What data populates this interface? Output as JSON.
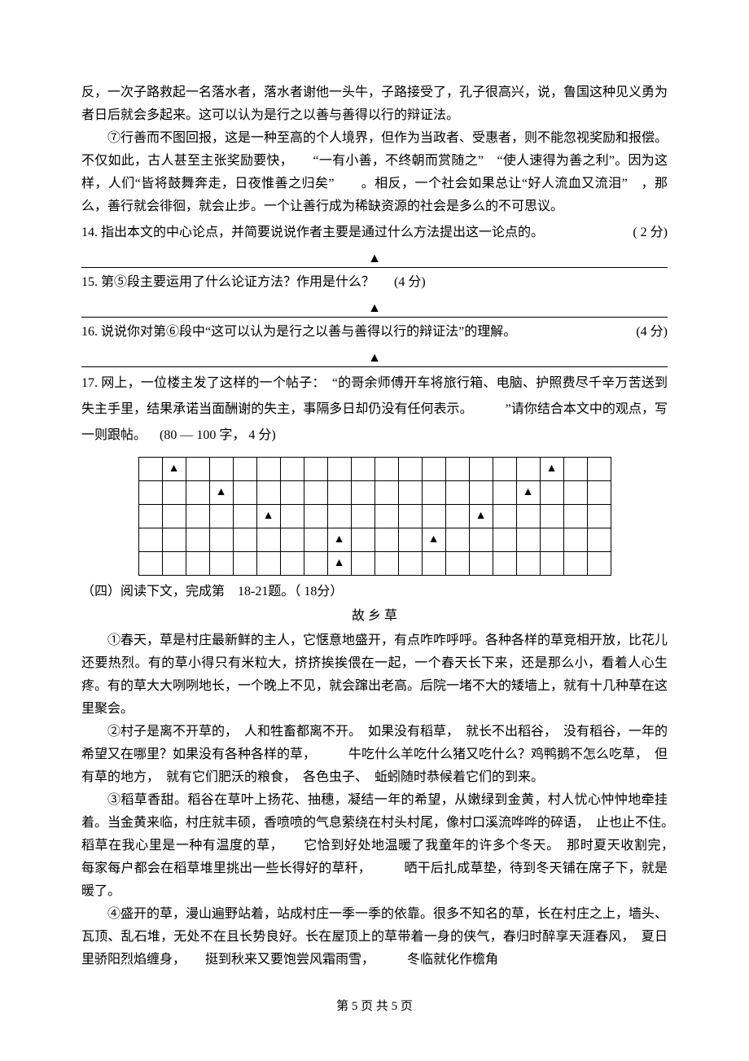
{
  "passage1": {
    "p_cont": "反，一次子路救起一名落水者，落水者谢他一头牛，子路接受了，孔子很高兴，说，鲁国这种见义勇为者日后就会多起来。这可以认为是行之以善与善得以行的辩证法。",
    "p7": "⑦行善而不图回报，这是一种至高的个人境界，但作为当政者、受惠者，则不能忽视奖励和报偿。不仅如此，古人甚至主张奖励要快，　　“一有小善，不终朝而赏随之”　“使人速得为善之利”。因为这样，人们“皆将鼓舞奔走，日夜惟善之归矣”　　。相反，一个社会如果总让“好人流血又流泪”　，那么，善行就会徘徊，就会止步。一个让善行成为稀缺资源的社会是多么的不可思议。"
  },
  "questions": {
    "q14": {
      "num": "14.",
      "text": "指出本文的中心论点，并简要说说作者主要是通过什么方法提出这一论点的。",
      "pts": "( 2 分)"
    },
    "q15": {
      "num": "15.",
      "text": "第⑤段主要运用了什么论证方法？作用是什么？",
      "pts": "(4 分)"
    },
    "q16": {
      "num": "16.",
      "text": "说说你对第⑥段中“这可以认为是行之以善与善得以行的辩证法”的理解。",
      "pts": "(4 分)"
    },
    "q17": {
      "num": "17.",
      "text_a": "网上，一位楼主发了这样的一个帖子：　“的哥余师傅开车将旅行箱、电脑、护照费尽千辛万苦送到失主手里，结果承诺当面酬谢的失主，事隔多日却仍没有任何表示。　　　”请你结合本文中的观点，写一则跟帖。",
      "pts": "(80 — 100 字， 4 分)"
    }
  },
  "triangle": "▲",
  "grid": {
    "rows": 5,
    "cols": 20,
    "marks": [
      {
        "r": 0,
        "c": 1
      },
      {
        "r": 0,
        "c": 17
      },
      {
        "r": 1,
        "c": 3
      },
      {
        "r": 1,
        "c": 16
      },
      {
        "r": 2,
        "c": 5
      },
      {
        "r": 2,
        "c": 14
      },
      {
        "r": 3,
        "c": 8
      },
      {
        "r": 3,
        "c": 12
      },
      {
        "r": 4,
        "c": 8
      }
    ]
  },
  "passage2_intro": "（四）阅读下文，完成第　18-21题。（ 18分）",
  "passage2_title": "故 乡 草",
  "passage2": {
    "p1": "①春天，草是村庄最新鲜的主人，它惬意地盛开，有点咋咋呼呼。各种各样的草竞相开放，比花儿还要热烈。有的草小得只有米粒大，挤挤挨挨偎在一起，一个春天长下来，还是那么小，看着人心生疼。有的草大大咧咧地长，一个晚上不见，就会蹿出老高。后院一堵不大的矮墙上，就有十几种草在这里聚会。",
    "p2": "②村子是离不开草的，　人和牲畜都离不开。　如果没有稻草，　就长不出稻谷，　没有稻谷，一年的希望又在哪里？如果没有各种各样的草，　　　牛吃什么羊吃什么猪又吃什么？鸡鸭鹅不怎么吃草，　但有草的地方，　就有它们肥沃的粮食，　各色虫子、　蚯蚓随时恭候着它们的到来。",
    "p3": "③稻草香甜。稻谷在草叶上扬花、抽穗，凝结一年的希望，从嫩绿到金黄，村人忧心忡忡地牵挂着。当金黄来临，村庄就丰硕，香喷喷的气息萦绕在村头村尾，像村口溪流哗哗的碎语，　止也止不住。　稻草在我心里是一种有温度的草，　　它恰到好处地温暖了我童年的许多个冬天。　那时夏天收割完，　每家每户都会在稻草堆里挑出一些长得好的草秆，　　　晒干后扎成草垫，待到冬天铺在席子下，就是暖了。",
    "p4_a": "④盛开的草，漫山遍野站着，站成村庄一季一季的依靠。很多不知名的草，长在村庄之上，墙头、瓦顶、乱石堆，无处不在且长势良好。长在屋顶上的草带着一身的侠气，春归时醉享天涯春风，　夏日里骄阳烈焰缠身，　　挺到秋来又要饱尝风霜雨雪，　　　冬临就化作檐角"
  },
  "footer": "第 5 页 共 5 页"
}
